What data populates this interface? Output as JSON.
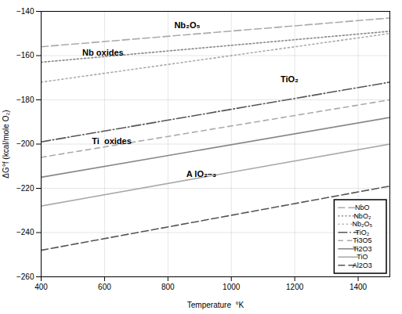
{
  "chart_data": {
    "type": "line",
    "xlabel": "Temperature  °K",
    "ylabel": "ΔG°f (kcal/mole O₂)",
    "x": [
      400,
      1500
    ],
    "series": [
      {
        "name": "NbO",
        "color": "#aaaaaa",
        "line_style": "dashed",
        "values": [
          -156,
          -143
        ]
      },
      {
        "name": "NbO₂",
        "color": "#888888",
        "line_style": "dotted",
        "values": [
          -163,
          -149
        ]
      },
      {
        "name": "Nb₂O₅",
        "color": "#aaaaaa",
        "line_style": "dashdot2",
        "values": [
          -172,
          -150
        ]
      },
      {
        "name": "TiO₂",
        "color": "#555555",
        "line_style": "dashdot",
        "values": [
          -199,
          -172
        ]
      },
      {
        "name": "Ti3O5",
        "color": "#aaaaaa",
        "line_style": "dashed2",
        "values": [
          -206,
          -180
        ]
      },
      {
        "name": "Ti2O3",
        "color": "#888888",
        "line_style": "solid",
        "values": [
          -215,
          -188
        ]
      },
      {
        "name": "TiO",
        "color": "#aaaaaa",
        "line_style": "solid",
        "values": [
          -228,
          -200
        ]
      },
      {
        "name": "Al2O3",
        "color": "#555555",
        "line_style": "dashed",
        "values": [
          -248,
          -219
        ]
      }
    ],
    "xlim": [
      400,
      1500
    ],
    "ylim": [
      -260,
      -140
    ],
    "xticks": [
      400,
      600,
      800,
      1000,
      1200,
      1400
    ],
    "yticks": [
      -260,
      -240,
      -220,
      -200,
      -180,
      -160,
      -140
    ],
    "grid": true,
    "legend": "lower right",
    "annotations": [
      {
        "text": "Nb₂O₅",
        "x": 820,
        "y": -147.5
      },
      {
        "text": "TiO₂",
        "x": 1155,
        "y": -172
      },
      {
        "text": "A lO₂–₃",
        "x": 858,
        "y": -215
      },
      {
        "text": "Nb oxides",
        "x": 530,
        "y": -160
      },
      {
        "text": "Ti  oxides",
        "x": 560,
        "y": -200
      }
    ]
  }
}
